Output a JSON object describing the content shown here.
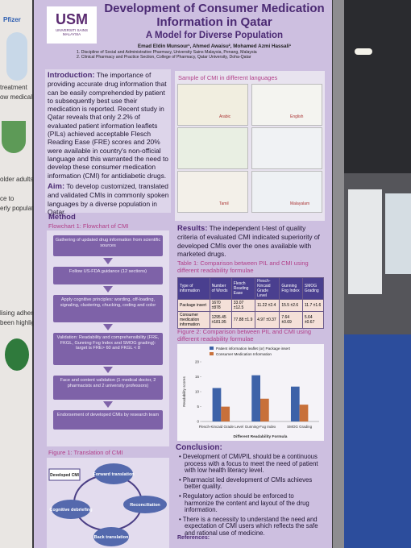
{
  "side_poster": {
    "fragments": [
      "Pfizer",
      "treatment",
      "ow medical",
      "older adults,",
      "ce to",
      "erly population",
      "lising adherence",
      "been highlighted"
    ]
  },
  "header": {
    "logo_text": "USM",
    "university": "UNIVERSITI SAINS MALAYSIA",
    "title": "Development of Consumer Medication Information in Qatar",
    "subtitle": "A Model for Diverse Population",
    "authors": "Emad Eldin Munsour¹, Ahmed Awaisu², Mohamed Azmi Hassali¹",
    "affiliations": [
      "1.  Discipline of Social and Administrative Pharmacy, University Sains Malaysia, Penang, Malaysia",
      "2.  Clinical Pharmacy and Practice Section, College of Pharmacy, Qatar University, Doha-Qatar"
    ]
  },
  "introduction": {
    "heading": "Introduction:",
    "text": "The importance of providing accurate drug information that can be easily comprehended by patient to subsequently best use their medication is reported. Recent study in Qatar reveals that only 2.2% of evaluated patient information leaflets (PILs) achieved acceptable Flesch Reading Ease (FRE) scores and 20% were available in country's non-official language and this warranted the need to develop these consumer medication information (CMI) for antidiabetic drugs."
  },
  "aim": {
    "heading": "Aim:",
    "text": "To develop customized, translated and validated CMIs in commonly spoken languages by a diverse population in Qatar."
  },
  "method": {
    "heading": "Method",
    "flowchart_title": "Flowchart 1: Flowchart of CMI",
    "steps": [
      "Gathering of updated drug information from scientific sources",
      "Follow US-FDA guidance (12 sections)",
      "Apply cognitive principles: wording, off-loading, signaling, clustering, chucking, coding and color",
      "Validation: Readability and comprehensibility (FRE, FKGL, Gunning Fog Index and SMOG grading): target is FRE> 60 and FKGL < 8",
      "Face and content validation (1 medical doctor, 2 pharmacists and 2 university professors)",
      "Endorsement of developed CMIs by research team"
    ]
  },
  "figure1": {
    "title": "Figure 1: Translation of CMI",
    "nodes": [
      "Developed CMI",
      "Forward translation",
      "Reconciliation",
      "Back translation",
      "Cognitive debriefing"
    ]
  },
  "samples": {
    "title": "Sample of CMI in different languages",
    "labels": [
      "Arabic",
      "English",
      "Tamil",
      "Malayalam"
    ]
  },
  "results": {
    "heading": "Results:",
    "text": "The independent t-test of quality criteria of evaluated CMI indicated superiority of developed CMIs over the ones available with marketed drugs."
  },
  "table1": {
    "title": "Table 1: Comparison between PIL and CMI using different readability formulae",
    "columns": [
      "Type of information",
      "Number of Words",
      "Flesch Reading Ease",
      "Flesch-Kincaid Grade Level",
      "Gunning Fog Index",
      "SMOG Grading"
    ],
    "rows": [
      [
        "Package insert",
        "1670 ±878",
        "33.07 ±12.5",
        "11.22 ±2.4",
        "15.5 ±2.6",
        "11.7 ±1.6"
      ],
      [
        "Consumer medication information",
        "1295.45 ±181.95",
        "77.88 ±1.9",
        "4.97 ±0.37",
        "7.64 ±0.69",
        "5.64 ±0.67"
      ]
    ]
  },
  "chart_data": {
    "type": "bar",
    "title": "Figure 2: Comparison between PIL and CMI using different readability formulae",
    "categories": [
      "Flesch-Kincaid Grade Level",
      "Gunning-Fog Index",
      "SMOG Grading"
    ],
    "series": [
      {
        "name": "Patient information leaflet (or) Package insert",
        "color": "#3d62a8",
        "values": [
          11.22,
          15.5,
          11.7
        ]
      },
      {
        "name": "Consumer Medication Information",
        "color": "#c8703a",
        "values": [
          4.97,
          7.64,
          5.64
        ]
      }
    ],
    "ylim": [
      0,
      20
    ],
    "yticks": [
      0,
      5,
      10,
      15,
      20
    ],
    "y_label": "Readability scores",
    "x_label": "Different Readability Formula",
    "grid": false
  },
  "conclusion": {
    "heading": "Conclusion:",
    "bullets": [
      "Development of CMI/PIL should be a continuous process with a focus to meet the need of patient with low health literacy level.",
      "Pharmacist led development of CMIs achieves better quality.",
      "Regulatory action should be enforced to harmonize the content and layout of the drug information.",
      "There is a necessity to understand the need and expectation of CMI users which reflects the safe and rational use of medicine."
    ]
  },
  "references": {
    "heading": "References:"
  }
}
